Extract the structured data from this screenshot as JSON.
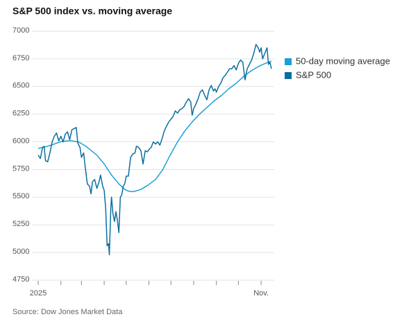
{
  "chart_data": {
    "type": "line",
    "title": "S&P 500 index vs. moving average",
    "source": "Source: Dow Jones Market Data",
    "xlim": [
      0,
      320
    ],
    "xticks": [
      {
        "value": 0,
        "label": "2025"
      },
      {
        "value": 31,
        "label": null
      },
      {
        "value": 59,
        "label": null
      },
      {
        "value": 90,
        "label": null
      },
      {
        "value": 120,
        "label": null
      },
      {
        "value": 151,
        "label": null
      },
      {
        "value": 181,
        "label": null
      },
      {
        "value": 212,
        "label": null
      },
      {
        "value": 243,
        "label": null
      },
      {
        "value": 273,
        "label": null
      },
      {
        "value": 304,
        "label": "Nov."
      }
    ],
    "ylim": [
      4750,
      7000
    ],
    "yticks": [
      4750,
      5000,
      5250,
      5500,
      5750,
      6000,
      6250,
      6500,
      6750,
      7000
    ],
    "grid": true,
    "legend": "right",
    "series": [
      {
        "name": "50-day moving average",
        "color": "#1aa0d8",
        "x": [
          0,
          10,
          20,
          30,
          40,
          45,
          55,
          65,
          80,
          90,
          100,
          110,
          118,
          123,
          130,
          140,
          150,
          160,
          170,
          180,
          190,
          200,
          210,
          220,
          230,
          240,
          250,
          260,
          270,
          280,
          290,
          300,
          310,
          318
        ],
        "values": [
          5940,
          5955,
          5975,
          6000,
          6010,
          6010,
          6000,
          5960,
          5880,
          5800,
          5700,
          5620,
          5570,
          5555,
          5550,
          5570,
          5610,
          5660,
          5750,
          5880,
          6000,
          6100,
          6180,
          6250,
          6310,
          6370,
          6420,
          6480,
          6530,
          6590,
          6640,
          6680,
          6710,
          6730
        ]
      },
      {
        "name": "S&P 500",
        "color": "#0b6f9f",
        "x": [
          0,
          3,
          6,
          8,
          10,
          13,
          16,
          19,
          22,
          25,
          28,
          31,
          34,
          37,
          40,
          43,
          46,
          49,
          52,
          54,
          57,
          59,
          62,
          64,
          67,
          70,
          72,
          74,
          77,
          80,
          83,
          85,
          88,
          90,
          92,
          94,
          96,
          97,
          99,
          100,
          102,
          104,
          106,
          108,
          110,
          112,
          114,
          116,
          118,
          120,
          123,
          126,
          129,
          132,
          134,
          137,
          140,
          143,
          146,
          149,
          151,
          154,
          157,
          160,
          163,
          166,
          169,
          172,
          175,
          178,
          181,
          184,
          187,
          190,
          193,
          196,
          199,
          202,
          205,
          208,
          210,
          212,
          215,
          218,
          221,
          224,
          227,
          230,
          233,
          236,
          239,
          241,
          243,
          246,
          249,
          252,
          255,
          258,
          261,
          264,
          267,
          270,
          273,
          276,
          279,
          282,
          285,
          288,
          291,
          294,
          297,
          300,
          302,
          304,
          306,
          309,
          312,
          314,
          316,
          318
        ],
        "values": [
          5880,
          5850,
          5950,
          5960,
          5830,
          5820,
          5900,
          6000,
          6050,
          6080,
          6010,
          6050,
          6000,
          6070,
          6090,
          6020,
          6110,
          6120,
          6130,
          5990,
          5950,
          5860,
          5900,
          5780,
          5620,
          5600,
          5530,
          5640,
          5660,
          5580,
          5640,
          5700,
          5600,
          5560,
          5400,
          5060,
          5080,
          4980,
          5400,
          5500,
          5350,
          5280,
          5370,
          5290,
          5180,
          5500,
          5520,
          5600,
          5620,
          5690,
          5690,
          5860,
          5890,
          5900,
          5960,
          5950,
          5920,
          5800,
          5920,
          5910,
          5930,
          5950,
          6000,
          5980,
          6000,
          5970,
          6030,
          6100,
          6140,
          6180,
          6205,
          6230,
          6280,
          6260,
          6290,
          6300,
          6320,
          6360,
          6390,
          6360,
          6240,
          6300,
          6340,
          6390,
          6450,
          6470,
          6420,
          6380,
          6470,
          6510,
          6460,
          6480,
          6450,
          6500,
          6530,
          6580,
          6600,
          6630,
          6660,
          6660,
          6690,
          6650,
          6710,
          6740,
          6720,
          6560,
          6660,
          6700,
          6740,
          6800,
          6880,
          6850,
          6810,
          6850,
          6750,
          6800,
          6850,
          6700,
          6720,
          6660
        ]
      }
    ]
  }
}
